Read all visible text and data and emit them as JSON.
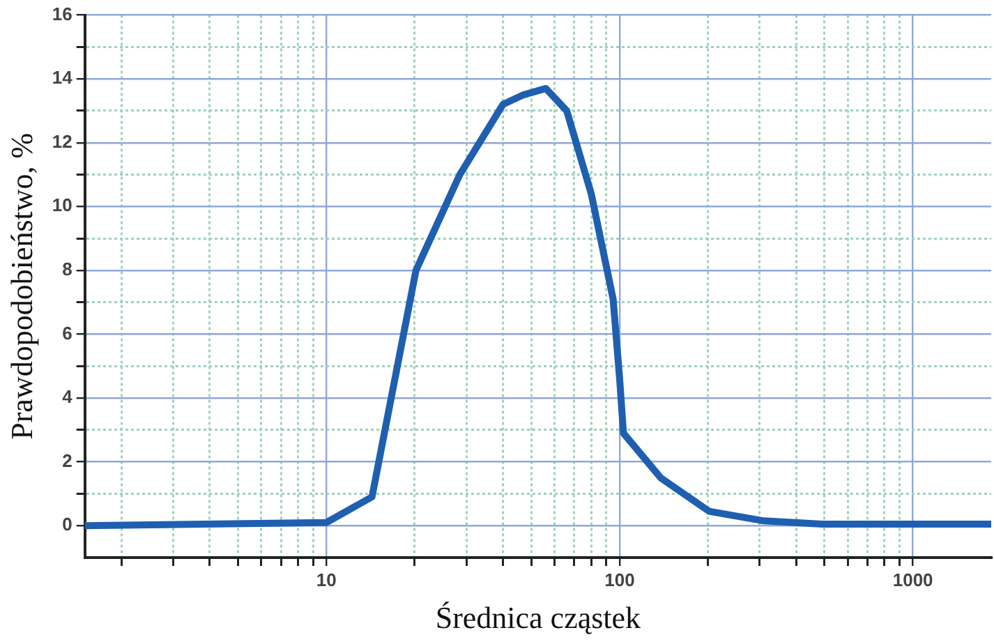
{
  "chart_data": {
    "type": "line",
    "xlabel": "Średnica cząstek",
    "ylabel": "Prawdopodobieństwo, %",
    "x": [
      1.5,
      10,
      14.3,
      20.2,
      28.5,
      40,
      47,
      56,
      66,
      80,
      95,
      100,
      103,
      138,
      202,
      310,
      490,
      1850
    ],
    "series": [
      {
        "color": "#1f5fb0",
        "values": [
          0,
          0.1,
          0.9,
          8,
          11,
          13.2,
          13.5,
          13.7,
          13,
          10.4,
          7.1,
          4.6,
          2.9,
          1.5,
          0.45,
          0.15,
          0.05,
          0.05
        ]
      }
    ],
    "log": "x",
    "xlim": [
      1.5,
      1850
    ],
    "ylim": [
      -1,
      16
    ],
    "xticks": [
      {
        "value": 2,
        "label": null
      },
      {
        "value": 3,
        "label": null
      },
      {
        "value": 4,
        "label": null
      },
      {
        "value": 5,
        "label": null
      },
      {
        "value": 6,
        "label": null
      },
      {
        "value": 7,
        "label": null
      },
      {
        "value": 8,
        "label": null
      },
      {
        "value": 9,
        "label": null
      },
      10,
      {
        "value": 20,
        "label": null
      },
      {
        "value": 30,
        "label": null
      },
      {
        "value": 40,
        "label": null
      },
      {
        "value": 50,
        "label": null
      },
      {
        "value": 60,
        "label": null
      },
      {
        "value": 70,
        "label": null
      },
      {
        "value": 80,
        "label": null
      },
      {
        "value": 90,
        "label": null
      },
      100,
      {
        "value": 200,
        "label": null
      },
      {
        "value": 300,
        "label": null
      },
      {
        "value": 400,
        "label": null
      },
      {
        "value": 500,
        "label": null
      },
      {
        "value": 600,
        "label": null
      },
      {
        "value": 700,
        "label": null
      },
      {
        "value": 800,
        "label": null
      },
      {
        "value": 900,
        "label": null
      },
      1000
    ],
    "yticks": [
      0,
      {
        "value": 1,
        "label": null
      },
      2,
      {
        "value": 3,
        "label": null
      },
      4,
      {
        "value": 5,
        "label": null
      },
      6,
      {
        "value": 7,
        "label": null
      },
      8,
      {
        "value": 9,
        "label": null
      },
      10,
      {
        "value": 11,
        "label": null
      },
      12,
      {
        "value": 13,
        "label": null
      },
      14,
      {
        "value": 15,
        "label": null
      },
      16
    ],
    "grid": true,
    "marker": "none",
    "line_style": "solid",
    "legend": false
  }
}
